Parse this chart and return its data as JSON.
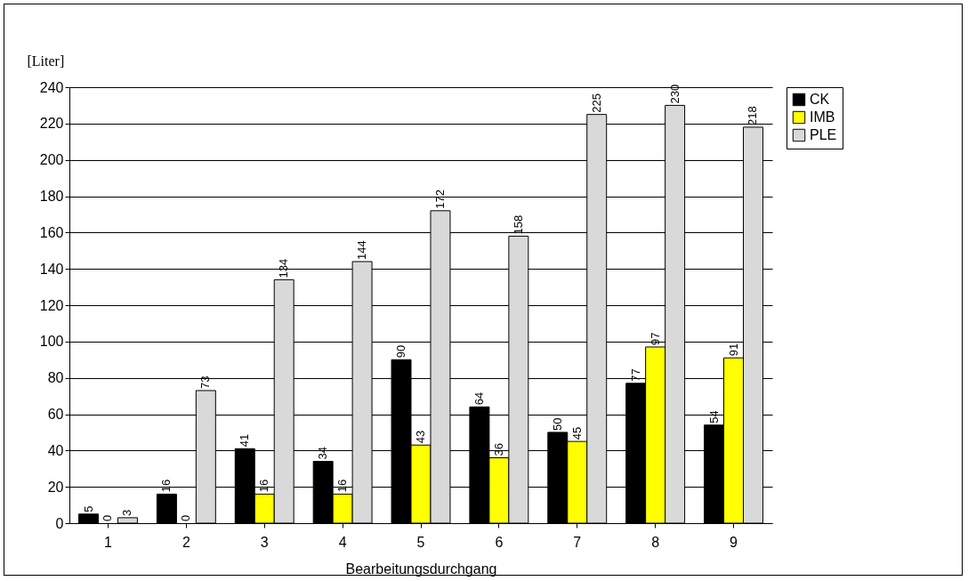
{
  "chart_data": {
    "type": "bar",
    "ylabel": "[Liter]",
    "xlabel": "Bearbeitungsdurchgang",
    "categories": [
      "1",
      "2",
      "3",
      "4",
      "5",
      "6",
      "7",
      "8",
      "9"
    ],
    "series": [
      {
        "name": "CK",
        "color": "#000000",
        "values": [
          5,
          16,
          41,
          34,
          90,
          64,
          50,
          77,
          54
        ]
      },
      {
        "name": "IMB",
        "color": "#ffff00",
        "values": [
          0,
          0,
          16,
          16,
          43,
          36,
          45,
          97,
          91
        ]
      },
      {
        "name": "PLE",
        "color": "#d9d9d9",
        "values": [
          3,
          73,
          134,
          144,
          172,
          158,
          225,
          230,
          218
        ]
      }
    ],
    "ylim": [
      0,
      240
    ],
    "yticks": [
      0,
      20,
      40,
      60,
      80,
      100,
      120,
      140,
      160,
      180,
      200,
      220,
      240
    ],
    "grid": "y",
    "legend": "right",
    "data_labels": true
  }
}
